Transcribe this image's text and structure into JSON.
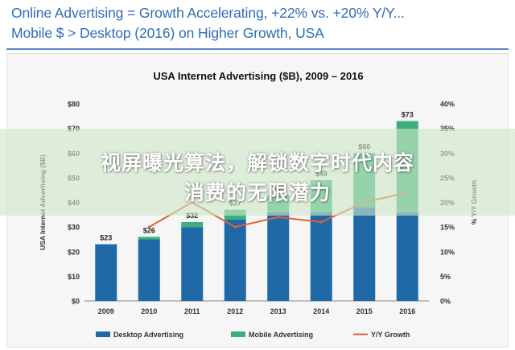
{
  "slide": {
    "title_line1": "Online Advertising = Growth Accelerating, +22% vs. +20% Y/Y...",
    "title_line2": "Mobile $ > Desktop (2016) on Higher Growth, USA"
  },
  "overlay": {
    "line1": "视屏曝光算法，解锁数字时代内容",
    "line2": "消费的无限潜力"
  },
  "chart_data": {
    "type": "bar",
    "stacked": true,
    "title": "USA Internet Advertising ($B), 2009 – 2016",
    "ylabel": "USA Internet Advertising ($B)",
    "y2label": "% Y/Y Growth",
    "categories": [
      "2009",
      "2010",
      "2011",
      "2012",
      "2013",
      "2014",
      "2015",
      "2016"
    ],
    "series": [
      {
        "name": "Desktop Advertising",
        "color": "#1f6aa6",
        "values": [
          23,
          25,
          30,
          33,
          36,
          36,
          38,
          36
        ]
      },
      {
        "name": "Mobile Advertising",
        "color": "#3bb07a",
        "values": [
          0,
          1,
          2,
          4,
          7,
          13,
          22,
          37
        ]
      }
    ],
    "line_series": {
      "name": "Y/Y Growth",
      "color": "#e0613c",
      "values": [
        null,
        15,
        20,
        15,
        17,
        16,
        20,
        22
      ]
    },
    "totals": [
      {
        "category": "2009",
        "label": "$23"
      },
      {
        "category": "2010",
        "label": "$26"
      },
      {
        "category": "2011",
        "label": "$32"
      },
      {
        "category": "2012",
        "label": "$37"
      },
      {
        "category": "2013",
        "label": "$43"
      },
      {
        "category": "2014",
        "label": "$49"
      },
      {
        "category": "2015",
        "label": "$60"
      },
      {
        "category": "2016",
        "label": "$73"
      }
    ],
    "yticks": [
      "$0",
      "$10",
      "$20",
      "$30",
      "$40",
      "$50",
      "$60",
      "$70",
      "$80"
    ],
    "y2ticks": [
      "0%",
      "5%",
      "10%",
      "15%",
      "20%",
      "25%",
      "30%",
      "35%",
      "40%"
    ],
    "ylim": [
      0,
      80
    ],
    "y2lim": [
      0,
      40
    ],
    "grid": false,
    "legend_position": "bottom"
  }
}
